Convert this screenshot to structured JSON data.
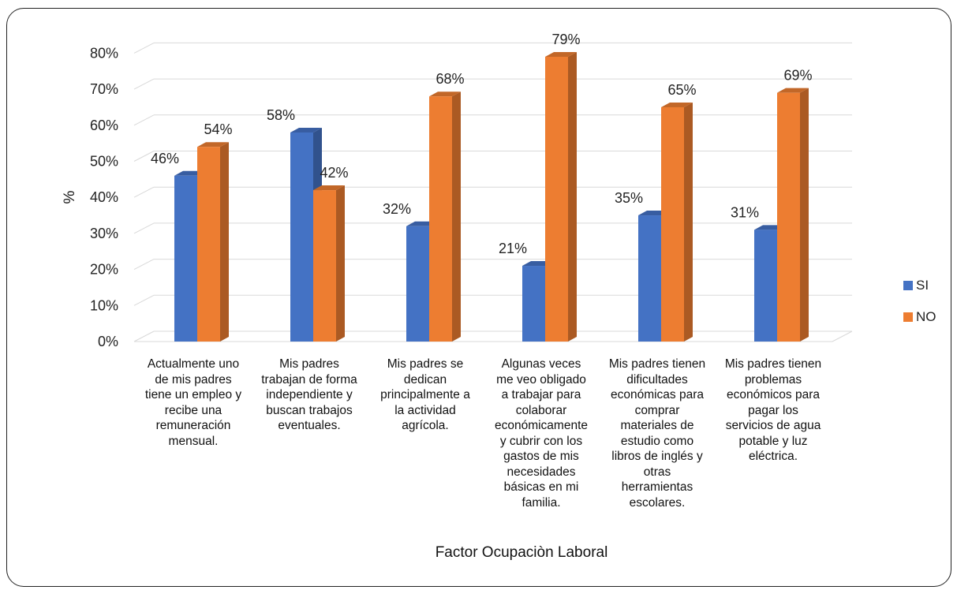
{
  "chart_data": {
    "type": "bar",
    "categories": [
      "Actualmente uno de mis padres tiene un empleo y recibe una remuneración mensual.",
      "Mis padres trabajan de forma independiente y buscan  trabajos eventuales.",
      "Mis padres se dedican principalmente a la actividad agrícola.",
      "Algunas veces me veo obligado a trabajar para colaborar económicamente y cubrir con los gastos de mis necesidades básicas en mi familia.",
      "Mis padres tienen dificultades económicas para comprar materiales de estudio como libros de inglés y otras herramientas escolares.",
      "Mis padres tienen problemas económicos para pagar los servicios de agua potable  y luz eléctrica."
    ],
    "category_lines": [
      [
        "Actualmente uno",
        "de mis padres",
        "tiene un empleo y",
        "recibe una",
        "remuneración",
        "mensual."
      ],
      [
        "Mis padres",
        "trabajan de forma",
        "independiente y",
        "buscan  trabajos",
        "eventuales."
      ],
      [
        "Mis padres se",
        "dedican",
        "principalmente a",
        "la actividad",
        "agrícola."
      ],
      [
        "Algunas veces",
        "me veo obligado",
        "a trabajar para",
        "colaborar",
        "económicamente",
        "y cubrir con los",
        "gastos de mis",
        "necesidades",
        "básicas en mi",
        "familia."
      ],
      [
        "Mis padres tienen",
        "dificultades",
        "económicas para",
        "comprar",
        "materiales de",
        "estudio como",
        "libros de inglés y",
        "otras",
        "herramientas",
        "escolares."
      ],
      [
        "Mis padres tienen",
        "problemas",
        "económicos para",
        "pagar los",
        "servicios de agua",
        "potable  y luz",
        "eléctrica."
      ]
    ],
    "series": [
      {
        "name": "SI",
        "values": [
          46,
          58,
          32,
          21,
          35,
          31
        ],
        "labels": [
          "46%",
          "58%",
          "32%",
          "21%",
          "35%",
          "31%"
        ],
        "color": "#4472C4"
      },
      {
        "name": "NO",
        "values": [
          54,
          42,
          68,
          79,
          65,
          69
        ],
        "labels": [
          "54%",
          "42%",
          "68%",
          "79%",
          "65%",
          "69%"
        ],
        "color": "#ED7D31"
      }
    ],
    "yticks": [
      "0%",
      "10%",
      "20%",
      "30%",
      "40%",
      "50%",
      "60%",
      "70%",
      "80%"
    ],
    "ylim": [
      0,
      80
    ],
    "xlabel": "Factor Ocupaciòn Laboral",
    "ylabel": "%",
    "grid": true,
    "legend_position": "right"
  }
}
